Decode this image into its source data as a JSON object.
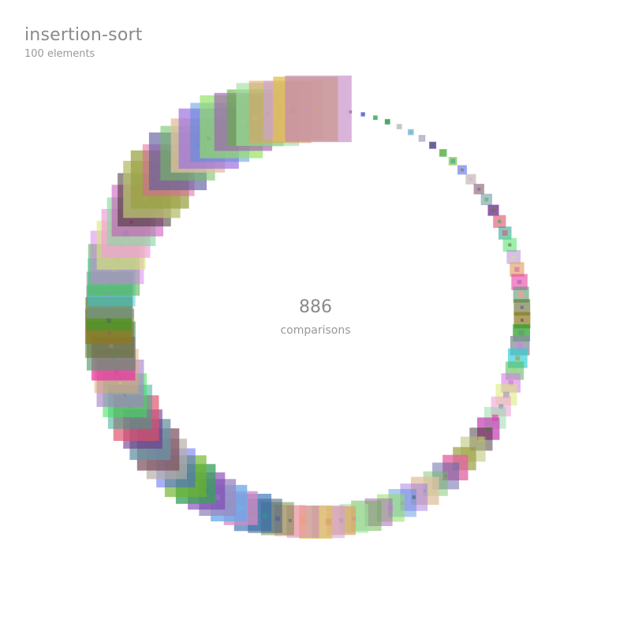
{
  "header": {
    "title": "insertion-sort",
    "subtitle": "100 elements"
  },
  "counter": {
    "value": "886",
    "label": "comparisons"
  },
  "visualization": {
    "element_count": 100,
    "style": "ring of semi-transparent squares, size grows with element value",
    "palette": [
      "#ff9a8f",
      "#5c7a2e",
      "#4a607a",
      "#2e6db0",
      "#d48ac4",
      "#6aa9ec",
      "#9b8cc2",
      "#7e3fb2",
      "#3aa05e",
      "#6db52a",
      "#4b59f0",
      "#b5ada8",
      "#7b5060",
      "#6895a5",
      "#6c2d8a",
      "#e0506a",
      "#2da88e",
      "#3ce05a",
      "#a880c8",
      "#e0a870",
      "#e830a0",
      "#5a9a70",
      "#5e6e2a",
      "#8c7a20",
      "#28a028",
      "#8890a0",
      "#30d0d0",
      "#58b858",
      "#d878e8",
      "#d8e870",
      "#f0a0d8",
      "#8ad8a0",
      "#c848b8",
      "#3a2a2a",
      "#b8c070",
      "#9aa040",
      "#e060a0",
      "#6060a0",
      "#70c060",
      "#e0c0a0",
      "#a070e0",
      "#5090e0",
      "#90e060",
      "#a060b0",
      "#60b040",
      "#a0e0a0",
      "#e0a060",
      "#d0a0e0",
      "#e0c050",
      "#c080c0"
    ]
  }
}
